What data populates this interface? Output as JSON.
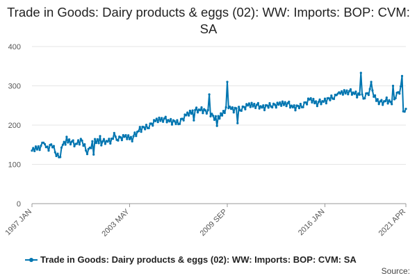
{
  "title": "Trade in Goods: Dairy products & eggs (02): WW: Imports: BOP: CVM: SA",
  "legend": {
    "label": "Trade in Goods: Dairy products & eggs (02): WW: Imports: BOP: CVM: SA"
  },
  "source_label": "Source:",
  "colors": {
    "series": "#0075b0",
    "grid": "#e6e6e6",
    "axis": "#999999"
  },
  "chart_data": {
    "type": "line",
    "title": "Trade in Goods: Dairy products & eggs (02): WW: Imports: BOP: CVM: SA",
    "xlabel": "",
    "ylabel": "",
    "ylim": [
      0,
      400
    ],
    "yticks": [
      0,
      100,
      200,
      300,
      400
    ],
    "xlim": [
      1997.0,
      2021.25
    ],
    "xticks": [
      {
        "label": "1997 JAN",
        "t": 1997.0
      },
      {
        "label": "2003 MAY",
        "t": 2003.333
      },
      {
        "label": "2009 SEP",
        "t": 2009.667
      },
      {
        "label": "2016 JAN",
        "t": 2016.0
      },
      {
        "label": "2021 APR",
        "t": 2021.25
      }
    ],
    "grid": "horizontal",
    "legend_position": "bottom",
    "series": [
      {
        "name": "Trade in Goods: Dairy products & eggs (02): WW: Imports: BOP: CVM: SA",
        "frequency": "monthly",
        "start": "1997 JAN",
        "anchors": [
          [
            1997.0,
            135
          ],
          [
            1997.3,
            140
          ],
          [
            1997.6,
            145
          ],
          [
            1997.8,
            152
          ],
          [
            1998.0,
            140
          ],
          [
            1998.3,
            150
          ],
          [
            1998.6,
            125
          ],
          [
            1998.8,
            120
          ],
          [
            1999.0,
            150
          ],
          [
            1999.4,
            160
          ],
          [
            1999.8,
            150
          ],
          [
            2000.2,
            162
          ],
          [
            2000.6,
            130
          ],
          [
            2001.0,
            160
          ],
          [
            2001.5,
            155
          ],
          [
            2002.0,
            160
          ],
          [
            2002.5,
            165
          ],
          [
            2003.0,
            170
          ],
          [
            2003.5,
            165
          ],
          [
            2004.0,
            190
          ],
          [
            2004.5,
            195
          ],
          [
            2005.0,
            210
          ],
          [
            2005.5,
            215
          ],
          [
            2006.0,
            210
          ],
          [
            2006.5,
            205
          ],
          [
            2007.0,
            225
          ],
          [
            2007.5,
            235
          ],
          [
            2008.0,
            240
          ],
          [
            2008.5,
            230
          ],
          [
            2009.0,
            215
          ],
          [
            2009.3,
            225
          ],
          [
            2009.7,
            250
          ],
          [
            2010.0,
            240
          ],
          [
            2010.5,
            240
          ],
          [
            2011.0,
            250
          ],
          [
            2011.5,
            250
          ],
          [
            2012.0,
            245
          ],
          [
            2012.5,
            250
          ],
          [
            2013.0,
            252
          ],
          [
            2013.5,
            255
          ],
          [
            2014.0,
            245
          ],
          [
            2014.5,
            248
          ],
          [
            2015.0,
            265
          ],
          [
            2015.5,
            255
          ],
          [
            2016.0,
            262
          ],
          [
            2016.5,
            270
          ],
          [
            2017.0,
            280
          ],
          [
            2017.5,
            285
          ],
          [
            2018.0,
            280
          ],
          [
            2018.5,
            270
          ],
          [
            2019.0,
            290
          ],
          [
            2019.3,
            265
          ],
          [
            2019.7,
            255
          ],
          [
            2020.0,
            265
          ],
          [
            2020.3,
            255
          ],
          [
            2020.6,
            275
          ],
          [
            2020.9,
            290
          ],
          [
            2021.05,
            320
          ],
          [
            2021.12,
            240
          ],
          [
            2021.25,
            235
          ]
        ],
        "noise": [
          0,
          4,
          -3,
          5,
          -2,
          3,
          -5,
          2,
          6,
          -4,
          1,
          -1,
          4,
          -6,
          3,
          2,
          -3,
          5,
          -2,
          -4,
          3,
          1,
          -5,
          4
        ],
        "spikes": [
          [
            1997.75,
            155
          ],
          [
            1998.75,
            118
          ],
          [
            1999.25,
            170
          ],
          [
            2001.0,
            125
          ],
          [
            2001.4,
            172
          ],
          [
            2002.3,
            180
          ],
          [
            2007.5,
            212
          ],
          [
            2008.5,
            278
          ],
          [
            2009.0,
            198
          ],
          [
            2009.7,
            310
          ],
          [
            2010.3,
            205
          ],
          [
            2016.8,
            280
          ],
          [
            2018.3,
            333
          ],
          [
            2019.0,
            310
          ],
          [
            2020.1,
            255
          ],
          [
            2020.4,
            300
          ],
          [
            2021.0,
            325
          ],
          [
            2021.1,
            235
          ]
        ]
      }
    ]
  }
}
